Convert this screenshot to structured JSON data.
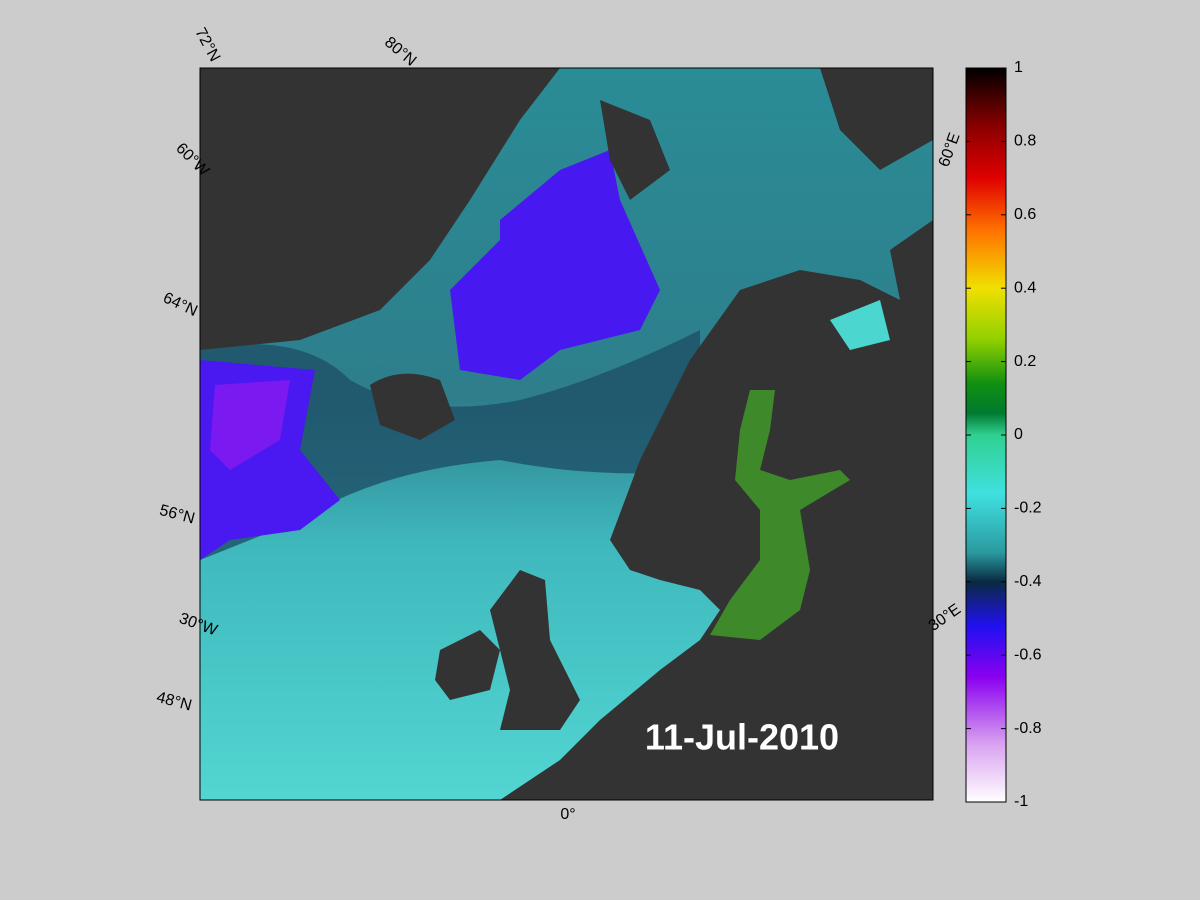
{
  "map": {
    "graticule_labels": [
      "72°N",
      "80°N",
      "60°W",
      "64°N",
      "56°N",
      "30°W",
      "48°N",
      "0°",
      "60°E",
      "30°E"
    ],
    "date_label": "11-Jul-2010"
  },
  "colorbar": {
    "lim": [
      -1,
      1
    ],
    "ticks": [
      1,
      0.8,
      0.6,
      0.4,
      0.2,
      0,
      -0.2,
      -0.4,
      -0.6,
      -0.8,
      -1
    ]
  }
}
